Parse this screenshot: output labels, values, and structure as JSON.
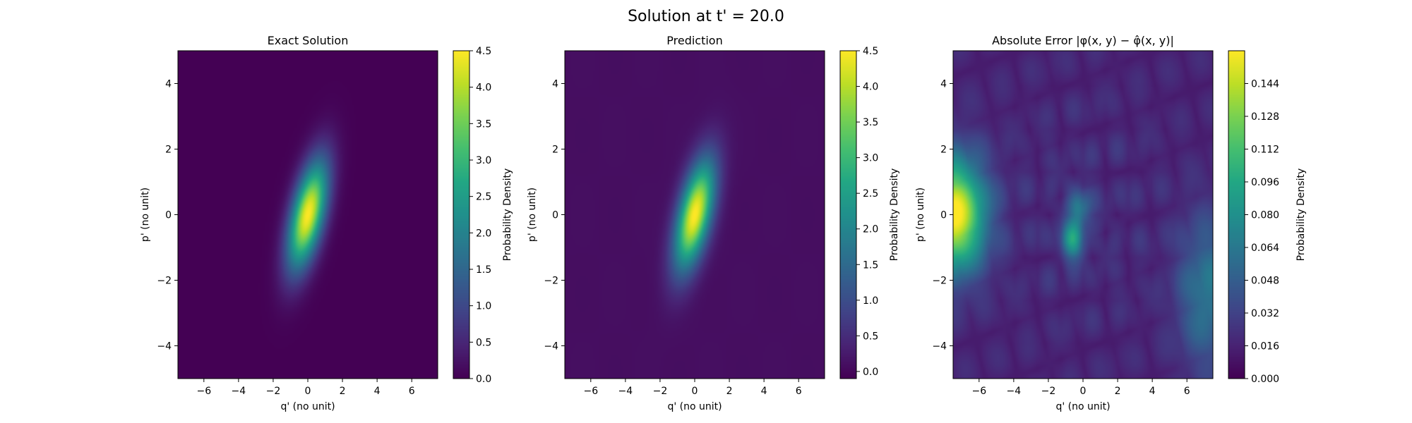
{
  "figure": {
    "title": "Solution at t' = 20.0"
  },
  "chart_data": [
    {
      "type": "heatmap",
      "title": "Exact Solution",
      "xlabel": "q' (no unit)",
      "ylabel": "p' (no unit)",
      "xlim": [
        -7.5,
        7.5
      ],
      "ylim": [
        -5,
        5
      ],
      "xticks": [
        -6,
        -4,
        -2,
        0,
        2,
        4,
        6
      ],
      "yticks": [
        -4,
        -2,
        0,
        2,
        4
      ],
      "colormap": "viridis",
      "colorbar": {
        "label": "Probability Density",
        "range": [
          0,
          4.5
        ],
        "ticks": [
          0.0,
          0.5,
          1.0,
          1.5,
          2.0,
          2.5,
          3.0,
          3.5,
          4.0,
          4.5
        ],
        "tick_labels": [
          "0.0",
          "0.5",
          "1.0",
          "1.5",
          "2.0",
          "2.5",
          "3.0",
          "3.5",
          "4.0",
          "4.5"
        ]
      },
      "field": {
        "kind": "gaussian",
        "peak": 4.5,
        "center": [
          0,
          0
        ],
        "sigma_major": 1.25,
        "sigma_minor": 0.6,
        "tilt_deg": 62
      }
    },
    {
      "type": "heatmap",
      "title": "Prediction",
      "xlabel": "q' (no unit)",
      "ylabel": "p' (no unit)",
      "xlim": [
        -7.5,
        7.5
      ],
      "ylim": [
        -5,
        5
      ],
      "xticks": [
        -6,
        -4,
        -2,
        0,
        2,
        4,
        6
      ],
      "yticks": [
        -4,
        -2,
        0,
        2,
        4
      ],
      "colormap": "viridis",
      "colorbar": {
        "label": "Probability Density",
        "range": [
          -0.1,
          4.5
        ],
        "ticks": [
          0.0,
          0.5,
          1.0,
          1.5,
          2.0,
          2.5,
          3.0,
          3.5,
          4.0,
          4.5
        ],
        "tick_labels": [
          "0.0",
          "0.5",
          "1.0",
          "1.5",
          "2.0",
          "2.5",
          "3.0",
          "3.5",
          "4.0",
          "4.5"
        ]
      },
      "field": {
        "kind": "gaussian",
        "peak": 4.45,
        "center": [
          0,
          0
        ],
        "sigma_major": 1.25,
        "sigma_minor": 0.6,
        "tilt_deg": 62,
        "background": 0.08,
        "ripple": 0.12
      }
    },
    {
      "type": "heatmap",
      "title": "Absolute Error |φ(x, y) − φ̂(x, y)|",
      "xlabel": "q' (no unit)",
      "ylabel": "p' (no unit)",
      "xlim": [
        -7.5,
        7.5
      ],
      "ylim": [
        -5,
        5
      ],
      "xticks": [
        -6,
        -4,
        -2,
        0,
        2,
        4,
        6
      ],
      "yticks": [
        -4,
        -2,
        0,
        2,
        4
      ],
      "colormap": "viridis",
      "colorbar": {
        "label": "Probability Density",
        "range": [
          0,
          0.16
        ],
        "ticks": [
          0.0,
          0.016,
          0.032,
          0.048,
          0.064,
          0.08,
          0.096,
          0.112,
          0.128,
          0.144
        ],
        "tick_labels": [
          "0.000",
          "0.016",
          "0.032",
          "0.048",
          "0.064",
          "0.080",
          "0.096",
          "0.112",
          "0.128",
          "0.144"
        ]
      },
      "field": {
        "kind": "error",
        "hotspots": [
          {
            "center": [
              -7.5,
              0.0
            ],
            "peak": 0.16
          },
          {
            "center": [
              -0.6,
              -0.8
            ],
            "peak": 0.085
          },
          {
            "center": [
              -0.2,
              0.2
            ],
            "peak": 0.06
          },
          {
            "center": [
              7.2,
              -2.4
            ],
            "peak": 0.06
          }
        ]
      }
    }
  ]
}
